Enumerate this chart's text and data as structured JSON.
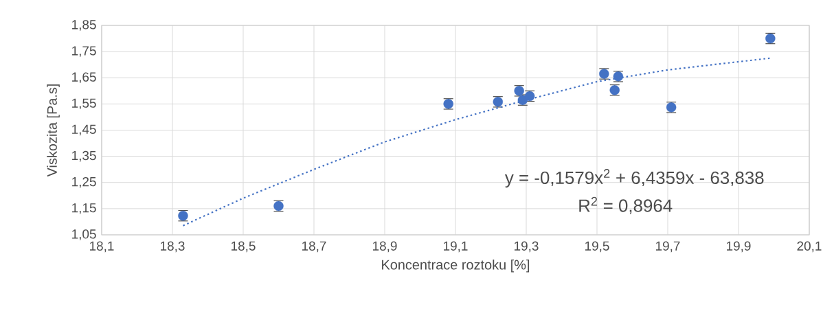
{
  "chart_data": {
    "type": "scatter",
    "xlabel": "Koncentrace roztoku [%]",
    "ylabel": "Viskozita [Pa.s]",
    "xlim": [
      18.1,
      20.1
    ],
    "ylim": [
      1.05,
      1.85
    ],
    "xticks": [
      {
        "value": 18.1,
        "label": "18,1"
      },
      {
        "value": 18.3,
        "label": "18,3"
      },
      {
        "value": 18.5,
        "label": "18,5"
      },
      {
        "value": 18.7,
        "label": "18,7"
      },
      {
        "value": 18.9,
        "label": "18,9"
      },
      {
        "value": 19.1,
        "label": "19,1"
      },
      {
        "value": 19.3,
        "label": "19,3"
      },
      {
        "value": 19.5,
        "label": "19,5"
      },
      {
        "value": 19.7,
        "label": "19,7"
      },
      {
        "value": 19.9,
        "label": "19,9"
      },
      {
        "value": 20.1,
        "label": "20,1"
      }
    ],
    "yticks": [
      {
        "value": 1.05,
        "label": "1,05"
      },
      {
        "value": 1.15,
        "label": "1,15"
      },
      {
        "value": 1.25,
        "label": "1,25"
      },
      {
        "value": 1.35,
        "label": "1,35"
      },
      {
        "value": 1.45,
        "label": "1,45"
      },
      {
        "value": 1.55,
        "label": "1,55"
      },
      {
        "value": 1.65,
        "label": "1,65"
      },
      {
        "value": 1.75,
        "label": "1,75"
      },
      {
        "value": 1.85,
        "label": "1,85"
      }
    ],
    "grid": true,
    "series": [
      {
        "marker": "circle",
        "color": "#4472c4",
        "x": [
          18.33,
          18.6,
          19.08,
          19.22,
          19.28,
          19.29,
          19.31,
          19.52,
          19.55,
          19.56,
          19.71,
          19.99
        ],
        "values": [
          1.123,
          1.16,
          1.55,
          1.558,
          1.6,
          1.565,
          1.58,
          1.665,
          1.603,
          1.655,
          1.537,
          1.8
        ],
        "errors": [
          0.02,
          0.02,
          0.02,
          0.02,
          0.02,
          0.02,
          0.02,
          0.02,
          0.02,
          0.02,
          0.02,
          0.02
        ]
      },
      {
        "type": "line",
        "color": "#4472c4",
        "line_style": "dotted",
        "x": [
          18.33,
          18.5,
          18.7,
          18.9,
          19.1,
          19.3,
          19.5,
          19.7,
          19.99
        ],
        "values": [
          1.085,
          1.19,
          1.3,
          1.405,
          1.49,
          1.565,
          1.635,
          1.68,
          1.725
        ]
      }
    ],
    "annotations": [
      "y = -0,1579x$^{2}$ + 6,4359x - 63,838",
      "R$^{2}$ = 0,8964"
    ]
  }
}
